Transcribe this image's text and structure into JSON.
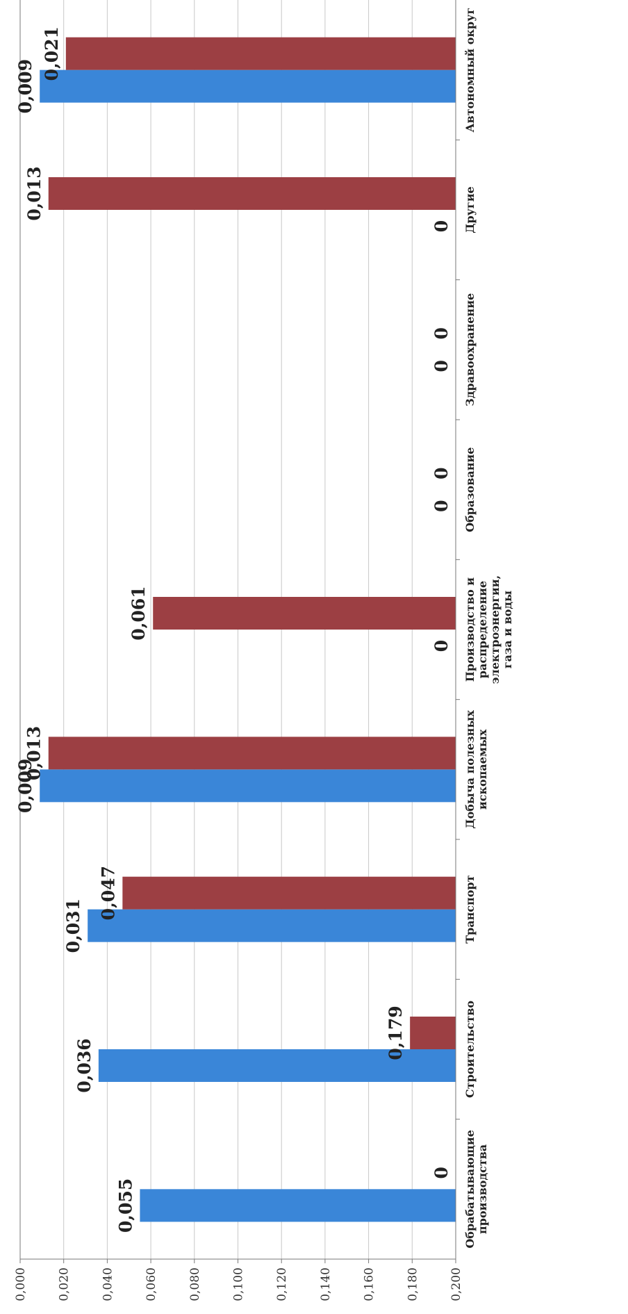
{
  "chart_data": {
    "type": "bar",
    "orientation": "rotated-90",
    "ylim": [
      0,
      0.2
    ],
    "yticks": [
      "0,000",
      "0,020",
      "0,040",
      "0,060",
      "0,080",
      "0,100",
      "0,120",
      "0,140",
      "0,160",
      "0,180",
      "0,200"
    ],
    "grid": true,
    "categories": [
      [
        "Обрабатывающие",
        "производства"
      ],
      [
        "Строительство"
      ],
      [
        "Транспорт"
      ],
      [
        "Добыча полезных",
        "ископаемых"
      ],
      [
        "Производство и",
        "распределение",
        "электроэнергии,",
        "газа и воды"
      ],
      [
        "Образование"
      ],
      [
        "Здравоохранение"
      ],
      [
        "Другие"
      ],
      [
        "Автономный округ"
      ]
    ],
    "series": [
      {
        "color": "#3a86d8",
        "values": [
          0.055,
          0.036,
          0.031,
          0.009,
          0,
          0,
          0,
          0,
          0.009
        ],
        "labels": [
          "0,055",
          "0,036",
          "0,031",
          "0,009",
          "0",
          "0",
          "0",
          "0",
          "0,009"
        ]
      },
      {
        "color": "#9c3f43",
        "values": [
          0,
          0.179,
          0.047,
          0.013,
          0.061,
          0,
          0,
          0.013,
          0.021
        ],
        "labels": [
          "0",
          "0,179",
          "0,047",
          "0,013",
          "0,061",
          "0",
          "0",
          "0,013",
          "0,021"
        ]
      }
    ]
  }
}
